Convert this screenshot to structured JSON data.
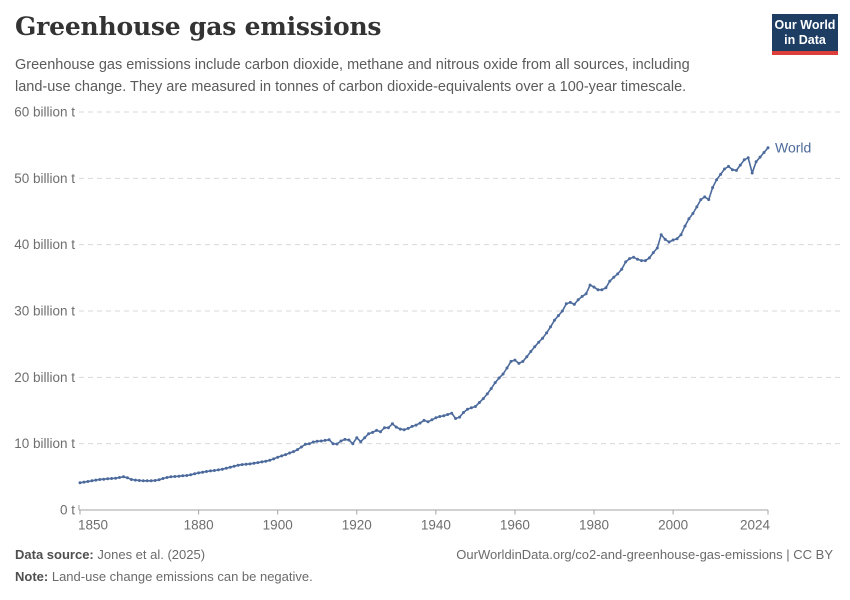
{
  "header": {
    "title": "Greenhouse gas emissions",
    "subtitle": "Greenhouse gas emissions include carbon dioxide, methane and nitrous oxide from all sources, including land-use change. They are measured in tonnes of carbon dioxide-equivalents over a 100-year timescale.",
    "logo": {
      "line1": "Our World",
      "line2": "in Data",
      "bg_color": "#1d3d63",
      "accent_color": "#dc3e39"
    }
  },
  "chart_data": {
    "type": "line",
    "title": "Greenhouse gas emissions",
    "xlabel": "",
    "ylabel": "",
    "unit": "tonnes of carbon dioxide-equivalents",
    "xlim": [
      1850,
      2024
    ],
    "ylim": [
      0,
      60
    ],
    "grid": "horizontal-dashed",
    "legend_position": "end-of-line-label",
    "x_ticks": [
      1850,
      1880,
      1900,
      1920,
      1940,
      1960,
      1980,
      2000,
      2024
    ],
    "y_ticks": [
      {
        "value": 0,
        "label": "0 t"
      },
      {
        "value": 10,
        "label": "10 billion t"
      },
      {
        "value": 20,
        "label": "20 billion t"
      },
      {
        "value": 30,
        "label": "30 billion t"
      },
      {
        "value": 40,
        "label": "40 billion t"
      },
      {
        "value": 50,
        "label": "50 billion t"
      },
      {
        "value": 60,
        "label": "60 billion t"
      }
    ],
    "colors": {
      "series": "#4c6a9c",
      "grid": "#d9d9d9",
      "axis": "#a3a3a3",
      "tick_label": "#6e6e6e"
    },
    "series": [
      {
        "name": "World",
        "color": "#4c6a9c",
        "year_start": 1850,
        "year_end": 2024,
        "values_unit": "billion tonnes CO2-eq",
        "values": [
          4.1,
          4.2,
          4.3,
          4.4,
          4.5,
          4.6,
          4.65,
          4.7,
          4.75,
          4.8,
          4.9,
          5.0,
          4.85,
          4.6,
          4.5,
          4.45,
          4.4,
          4.4,
          4.4,
          4.45,
          4.55,
          4.75,
          4.9,
          5.0,
          5.05,
          5.1,
          5.15,
          5.2,
          5.3,
          5.45,
          5.6,
          5.7,
          5.8,
          5.9,
          5.95,
          6.05,
          6.15,
          6.3,
          6.45,
          6.6,
          6.75,
          6.85,
          6.9,
          6.95,
          7.05,
          7.15,
          7.25,
          7.35,
          7.5,
          7.7,
          7.95,
          8.15,
          8.35,
          8.6,
          8.8,
          9.1,
          9.5,
          9.9,
          10.0,
          10.25,
          10.35,
          10.4,
          10.5,
          10.6,
          10.0,
          9.95,
          10.4,
          10.65,
          10.55,
          10.0,
          10.9,
          10.3,
          10.9,
          11.5,
          11.7,
          12.0,
          11.8,
          12.4,
          12.4,
          13.0,
          12.5,
          12.2,
          12.1,
          12.3,
          12.6,
          12.8,
          13.1,
          13.5,
          13.3,
          13.6,
          13.9,
          14.1,
          14.2,
          14.4,
          14.6,
          13.8,
          14.0,
          14.7,
          15.2,
          15.4,
          15.6,
          16.2,
          16.8,
          17.5,
          18.3,
          19.2,
          19.9,
          20.5,
          21.4,
          22.4,
          22.6,
          22.1,
          22.4,
          23.1,
          23.9,
          24.6,
          25.3,
          25.9,
          26.7,
          27.6,
          28.6,
          29.3,
          30.0,
          31.1,
          31.3,
          31.0,
          31.7,
          32.2,
          32.6,
          33.9,
          33.6,
          33.2,
          33.2,
          33.5,
          34.5,
          35.1,
          35.6,
          36.3,
          37.4,
          37.9,
          38.1,
          37.8,
          37.6,
          37.6,
          38.0,
          38.8,
          39.5,
          41.5,
          40.8,
          40.4,
          40.7,
          40.9,
          41.5,
          42.8,
          43.9,
          44.7,
          45.7,
          46.8,
          47.2,
          46.8,
          48.6,
          49.8,
          50.6,
          51.4,
          51.8,
          51.3,
          51.2,
          52.0,
          52.8,
          53.1,
          50.8,
          52.5,
          53.2,
          53.9,
          54.6
        ]
      }
    ]
  },
  "footer": {
    "data_source_label": "Data source:",
    "data_source_value": "Jones et al. (2025)",
    "note_label": "Note:",
    "note_value": "Land-use change emissions can be negative.",
    "attribution": "OurWorldinData.org/co2-and-greenhouse-gas-emissions | CC BY"
  }
}
